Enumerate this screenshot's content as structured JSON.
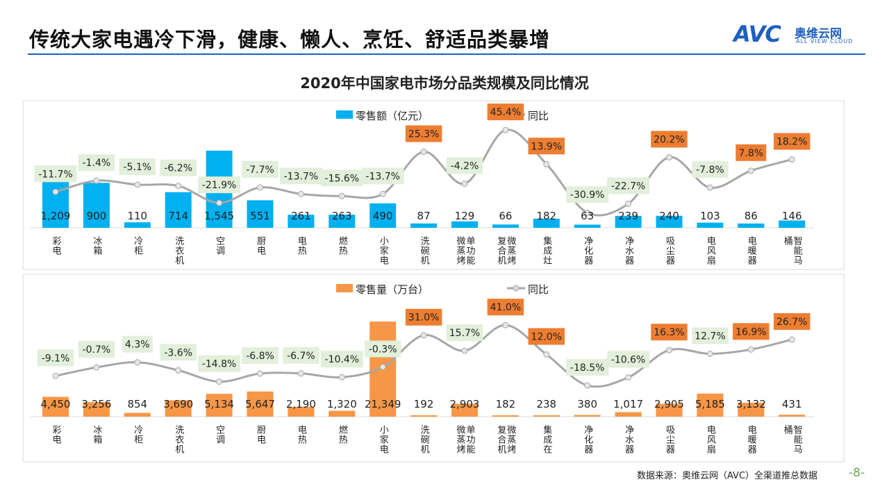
{
  "header": {
    "title": "传统大家电遇冷下滑，健康、懒人、烹饪、舒适品类暴增",
    "logo": {
      "mark": "AVC",
      "name_cn": "奥维云网",
      "name_en": "ALL VIEW CLOUD"
    }
  },
  "footer": {
    "source": "数据来源：奥维云网（AVC）全渠道推总数据",
    "page": "-8-"
  },
  "colors": {
    "sales_bar": "#00b0f0",
    "volume_bar": "#f79646",
    "yoy_line": "#a6a6a6",
    "highlight_label": "#ed7d31",
    "normal_label": "#e2efda",
    "brand": "#1f5fbf"
  },
  "chart_data": [
    {
      "type": "bar+line",
      "title": "2020年中国家电市场分品类规模及同比情况",
      "categories": [
        "彩电",
        "冰箱",
        "冷柜",
        "洗衣机",
        "空调",
        "厨电",
        "电热",
        "燃热",
        "小家电",
        "洗碗机",
        "单功能微蒸烤",
        "微蒸烤复合机",
        "集成灶",
        "净化器",
        "净水器",
        "吸尘器",
        "电风扇",
        "电暖器",
        "智能马桶"
      ],
      "bar_series": {
        "name": "零售额（亿元）",
        "values": [
          1209,
          900,
          110,
          714,
          1545,
          551,
          261,
          263,
          490,
          87,
          129,
          66,
          182,
          63,
          239,
          240,
          103,
          86,
          146
        ],
        "labels": [
          "1,209",
          "900",
          "110",
          "714",
          "1,545",
          "551",
          "261",
          "263",
          "490",
          "87",
          "129",
          "66",
          "182",
          "63",
          "239",
          "240",
          "103",
          "86",
          "146"
        ]
      },
      "line_series": {
        "name": "同比",
        "unit": "%",
        "values": [
          -11.7,
          -1.4,
          -5.1,
          -6.2,
          -21.9,
          -7.7,
          -13.7,
          -15.6,
          -13.7,
          25.3,
          -4.2,
          45.4,
          13.9,
          -30.9,
          -22.7,
          20.2,
          -7.8,
          7.8,
          18.2
        ],
        "highlighted": [
          false,
          false,
          false,
          false,
          false,
          false,
          false,
          false,
          false,
          true,
          false,
          true,
          true,
          false,
          false,
          true,
          false,
          true,
          true
        ]
      },
      "legend": "top"
    },
    {
      "type": "bar+line",
      "categories": [
        "彩电",
        "冰箱",
        "冷柜",
        "洗衣机",
        "空调",
        "厨电",
        "电热",
        "燃热",
        "小家电",
        "洗碗机",
        "单功能微蒸烤",
        "微蒸烤复合机",
        "集成在",
        "净化器",
        "净水器",
        "吸尘器",
        "电风扇",
        "电暖器",
        "智能马桶"
      ],
      "bar_series": {
        "name": "零售量（万台）",
        "values": [
          4450,
          3256,
          854,
          3690,
          5134,
          5647,
          2190,
          1320,
          21349,
          192,
          2903,
          182,
          238,
          380,
          1017,
          2905,
          5185,
          3132,
          431
        ],
        "labels": [
          "4,450",
          "3,256",
          "854",
          "3,690",
          "5,134",
          "5,647",
          "2,190",
          "1,320",
          "21,349",
          "192",
          "2,903",
          "182",
          "238",
          "380",
          "1,017",
          "2,905",
          "5,185",
          "3,132",
          "431"
        ]
      },
      "line_series": {
        "name": "同比",
        "unit": "%",
        "values": [
          -9.1,
          -0.7,
          4.3,
          -3.6,
          -14.8,
          -6.8,
          -6.7,
          -10.4,
          -0.3,
          31.0,
          15.7,
          41.0,
          12.0,
          -18.5,
          -10.6,
          16.3,
          12.7,
          16.9,
          26.7
        ],
        "highlighted": [
          false,
          false,
          false,
          false,
          false,
          false,
          false,
          false,
          false,
          true,
          false,
          true,
          true,
          false,
          false,
          true,
          false,
          true,
          true
        ]
      },
      "legend": "top"
    }
  ]
}
